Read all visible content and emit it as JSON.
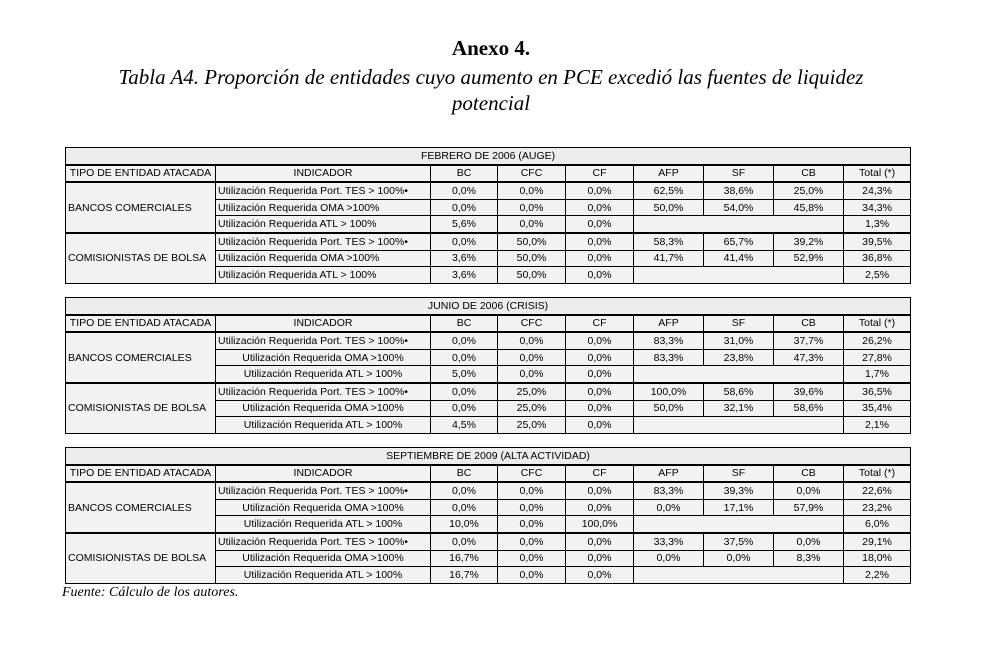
{
  "heading": "Anexo 4.",
  "subtitle": "Tabla A4. Proporción de entidades cuyo aumento en PCE excedió las fuentes de liquidez potencial",
  "columns": [
    "TIPO DE ENTIDAD ATACADA",
    "INDICADOR",
    "BC",
    "CFC",
    "CF",
    "AFP",
    "SF",
    "CB",
    "Total (*)"
  ],
  "indicators": [
    "Utilización Requerida Port. TES > 100%•",
    "Utilización Requerida OMA >100%",
    "Utilización Requerida ATL > 100%"
  ],
  "tables": [
    {
      "caption": "FEBRERO DE 2006 (AUGE)",
      "groups": [
        {
          "entity": "BANCOS COMERCIALES",
          "rows": [
            [
              "0,0%",
              "0,0%",
              "0,0%",
              "62,5%",
              "38,6%",
              "25,0%",
              "24,3%"
            ],
            [
              "0,0%",
              "0,0%",
              "0,0%",
              "50,0%",
              "54,0%",
              "45,8%",
              "34,3%"
            ],
            [
              "5,6%",
              "0,0%",
              "0,0%",
              "",
              "",
              "",
              "1,3%"
            ]
          ]
        },
        {
          "entity": "COMISIONISTAS DE BOLSA",
          "rows": [
            [
              "0,0%",
              "50,0%",
              "0,0%",
              "58,3%",
              "65,7%",
              "39,2%",
              "39,5%"
            ],
            [
              "3,6%",
              "50,0%",
              "0,0%",
              "41,7%",
              "41,4%",
              "52,9%",
              "36,8%"
            ],
            [
              "3,6%",
              "50,0%",
              "0,0%",
              "",
              "",
              "",
              "2,5%"
            ]
          ]
        }
      ]
    },
    {
      "caption": "JUNIO DE 2006 (CRISIS)",
      "groups": [
        {
          "entity": "BANCOS COMERCIALES",
          "rows": [
            [
              "0,0%",
              "0,0%",
              "0,0%",
              "83,3%",
              "31,0%",
              "37,7%",
              "26,2%"
            ],
            [
              "0,0%",
              "0,0%",
              "0,0%",
              "83,3%",
              "23,8%",
              "47,3%",
              "27,8%"
            ],
            [
              "5,0%",
              "0,0%",
              "0,0%",
              "",
              "",
              "",
              "1,7%"
            ]
          ]
        },
        {
          "entity": "COMISIONISTAS DE BOLSA",
          "rows": [
            [
              "0,0%",
              "25,0%",
              "0,0%",
              "100,0%",
              "58,6%",
              "39,6%",
              "36,5%"
            ],
            [
              "0,0%",
              "25,0%",
              "0,0%",
              "50,0%",
              "32,1%",
              "58,6%",
              "35,4%"
            ],
            [
              "4,5%",
              "25,0%",
              "0,0%",
              "",
              "",
              "",
              "2,1%"
            ]
          ]
        }
      ]
    },
    {
      "caption": "SEPTIEMBRE DE 2009 (ALTA ACTIVIDAD)",
      "groups": [
        {
          "entity": "BANCOS COMERCIALES",
          "rows": [
            [
              "0,0%",
              "0,0%",
              "0,0%",
              "83,3%",
              "39,3%",
              "0,0%",
              "22,6%"
            ],
            [
              "0,0%",
              "0,0%",
              "0,0%",
              "0,0%",
              "17,1%",
              "57,9%",
              "23,2%"
            ],
            [
              "10,0%",
              "0,0%",
              "100,0%",
              "",
              "",
              "",
              "6,0%"
            ]
          ]
        },
        {
          "entity": "COMISIONISTAS DE BOLSA",
          "rows": [
            [
              "0,0%",
              "0,0%",
              "0,0%",
              "33,3%",
              "37,5%",
              "0,0%",
              "29,1%"
            ],
            [
              "16,7%",
              "0,0%",
              "0,0%",
              "0,0%",
              "0,0%",
              "8,3%",
              "18,0%"
            ],
            [
              "16,7%",
              "0,0%",
              "0,0%",
              "",
              "",
              "",
              "2,2%"
            ]
          ]
        }
      ]
    }
  ],
  "source": "Fuente: Cálculo de los autores."
}
